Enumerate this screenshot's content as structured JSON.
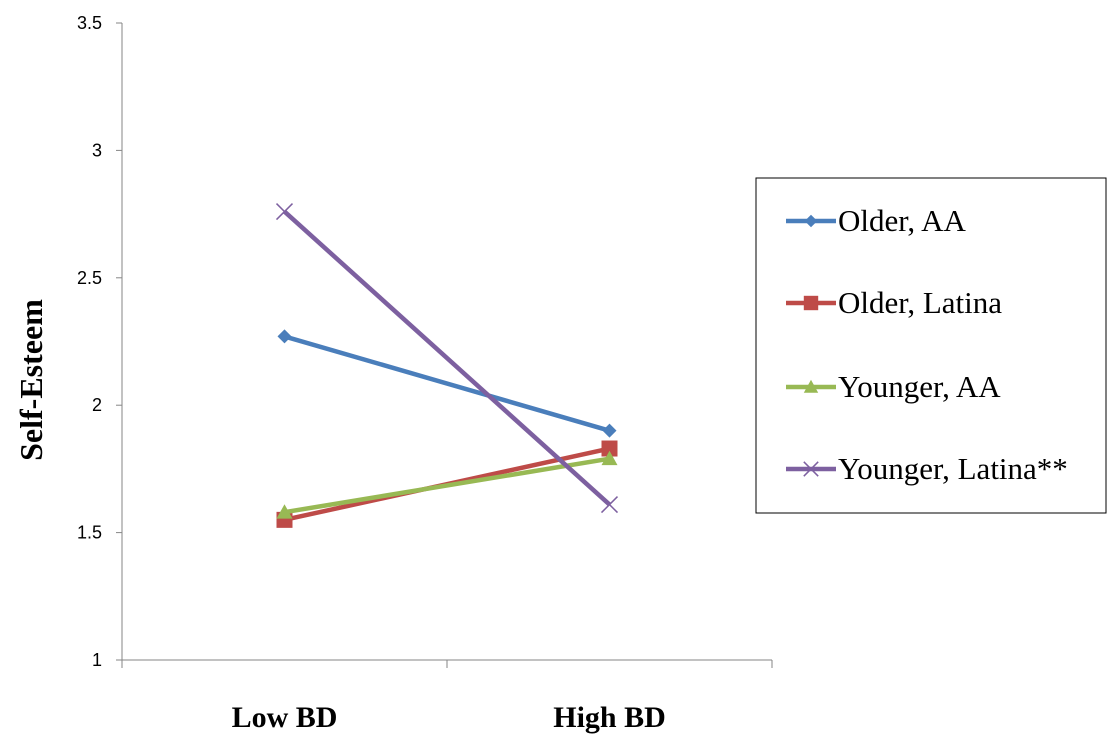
{
  "chart_data": {
    "type": "line",
    "categories": [
      "Low BD",
      "High BD"
    ],
    "ylabel": "Self-Esteem",
    "xlabel": "",
    "ylim": [
      1,
      3.5
    ],
    "yticks": [
      "1",
      "1.5",
      "2",
      "2.5",
      "3",
      "3.5"
    ],
    "grid": false,
    "legend_position": "right",
    "series": [
      {
        "name": "Older, AA",
        "values": [
          2.27,
          1.9
        ],
        "color": "#4a7ebb",
        "marker": "diamond"
      },
      {
        "name": "Older, Latina",
        "values": [
          1.55,
          1.83
        ],
        "color": "#be4b48",
        "marker": "square"
      },
      {
        "name": "Younger, AA",
        "values": [
          1.58,
          1.79
        ],
        "color": "#98b954",
        "marker": "triangle"
      },
      {
        "name": "Younger, Latina**",
        "values": [
          2.76,
          1.61
        ],
        "color": "#7d60a0",
        "marker": "x"
      }
    ]
  }
}
